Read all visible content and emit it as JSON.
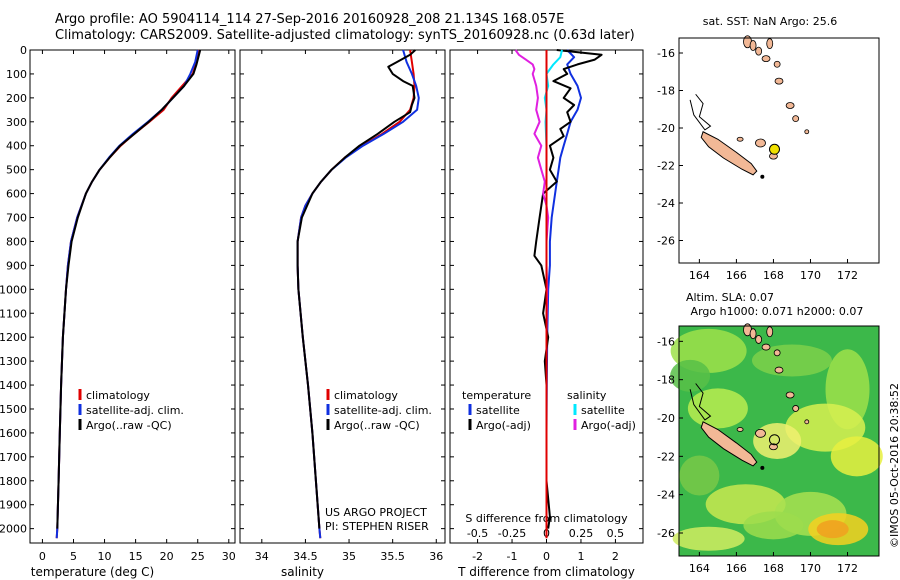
{
  "header": {
    "line1": "Argo profile: AO 5904114_114 27-Sep-2016 20160928_208 21.134S 168.057E",
    "line2": "Climatology: CARS2009. Satellite-adjusted climatology: synTS_20160928.nc (0.63d later)"
  },
  "colors": {
    "climatology": "#e00000",
    "satellite": "#1030e0",
    "argo": "#000000",
    "sat_salinity": "#00e8ff",
    "argo_salinity": "#e020e0",
    "land": "#f2b896",
    "marker": "#f0e000"
  },
  "chart_data": [
    {
      "type": "line",
      "name": "temperature",
      "xlabel": "temperature (deg C)",
      "ylabel": "",
      "xlim": [
        -2,
        31
      ],
      "ylim": [
        2060,
        0
      ],
      "xticks": [
        "0",
        "5",
        "10",
        "15",
        "20",
        "25",
        "30"
      ],
      "yticks": [
        "0",
        "100",
        "200",
        "300",
        "400",
        "500",
        "600",
        "700",
        "800",
        "900",
        "1000",
        "1100",
        "1200",
        "1300",
        "1400",
        "1500",
        "1600",
        "1700",
        "1800",
        "1900",
        "2000"
      ],
      "legend": [
        "climatology",
        "satellite-adj. clim.",
        "Argo(..raw -QC)"
      ],
      "series": [
        {
          "name": "climatology",
          "color": "#e00000",
          "depth": [
            0,
            50,
            100,
            150,
            200,
            250,
            300,
            350,
            400,
            450,
            500,
            550,
            600,
            700,
            800,
            900,
            1000,
            1200,
            1400,
            1600,
            1800,
            2000,
            2040
          ],
          "values": [
            25.2,
            24.8,
            24.2,
            22.5,
            20.8,
            19.5,
            17.2,
            14.8,
            12.6,
            10.8,
            9.2,
            8.0,
            7.0,
            5.6,
            4.6,
            4.1,
            3.8,
            3.3,
            3.0,
            2.8,
            2.6,
            2.4,
            2.3
          ]
        },
        {
          "name": "satellite-adj. clim.",
          "color": "#1030e0",
          "depth": [
            0,
            50,
            100,
            150,
            200,
            250,
            300,
            350,
            400,
            450,
            500,
            550,
            600,
            700,
            800,
            900,
            1000,
            1200,
            1400,
            1600,
            1800,
            2000,
            2040
          ],
          "values": [
            25.0,
            24.6,
            23.8,
            22.8,
            21.0,
            19.2,
            17.0,
            14.6,
            12.4,
            10.7,
            9.2,
            8.0,
            7.0,
            5.6,
            4.6,
            4.1,
            3.8,
            3.3,
            3.0,
            2.8,
            2.6,
            2.4,
            2.3
          ]
        },
        {
          "name": "Argo(..raw -QC)",
          "color": "#000000",
          "depth": [
            0,
            20,
            60,
            100,
            150,
            200,
            250,
            300,
            350,
            400,
            450,
            500,
            550,
            600,
            700,
            800,
            900,
            1000,
            1200,
            1400,
            1600,
            1800,
            2000
          ],
          "values": [
            25.4,
            25.2,
            24.8,
            24.3,
            22.8,
            21.0,
            19.2,
            17.1,
            14.8,
            12.5,
            10.8,
            9.2,
            8.0,
            7.0,
            5.7,
            4.7,
            4.2,
            3.8,
            3.3,
            3.0,
            2.8,
            2.6,
            2.4
          ]
        }
      ]
    },
    {
      "type": "line",
      "name": "salinity",
      "xlabel": "salinity",
      "ylabel": "",
      "xlim": [
        33.75,
        36.1
      ],
      "ylim": [
        2060,
        0
      ],
      "xticks": [
        "34",
        "34.5",
        "35",
        "35.5",
        "36"
      ],
      "legend": [
        "climatology",
        "satellite-adj. clim.",
        "Argo(..raw -QC)"
      ],
      "annotation": [
        "US ARGO PROJECT",
        "PI: STEPHEN RISER"
      ],
      "series": [
        {
          "name": "climatology",
          "color": "#e00000",
          "depth": [
            0,
            50,
            100,
            150,
            200,
            250,
            300,
            350,
            400,
            450,
            500,
            550,
            600,
            650,
            700,
            800,
            900,
            1000,
            1200,
            1400,
            1600,
            1800,
            2000,
            2040
          ],
          "values": [
            35.7,
            35.72,
            35.74,
            35.75,
            35.74,
            35.7,
            35.58,
            35.38,
            35.15,
            34.95,
            34.8,
            34.68,
            34.58,
            34.5,
            34.45,
            34.41,
            34.41,
            34.42,
            34.47,
            34.53,
            34.58,
            34.62,
            34.66,
            34.67
          ]
        },
        {
          "name": "satellite-adj. clim.",
          "color": "#1030e0",
          "depth": [
            0,
            50,
            100,
            150,
            200,
            250,
            300,
            350,
            400,
            450,
            500,
            550,
            600,
            650,
            700,
            800,
            900,
            1000,
            1200,
            1400,
            1600,
            1800,
            2000,
            2040
          ],
          "values": [
            35.62,
            35.66,
            35.72,
            35.77,
            35.8,
            35.78,
            35.62,
            35.4,
            35.16,
            34.96,
            34.8,
            34.68,
            34.58,
            34.5,
            34.45,
            34.41,
            34.41,
            34.42,
            34.47,
            34.53,
            34.58,
            34.62,
            34.66,
            34.67
          ]
        },
        {
          "name": "Argo(..raw -QC)",
          "color": "#000000",
          "depth": [
            0,
            20,
            50,
            70,
            100,
            130,
            150,
            200,
            230,
            260,
            300,
            350,
            400,
            450,
            500,
            550,
            600,
            700,
            800,
            900,
            1000,
            1200,
            1400,
            1600,
            1800,
            2000
          ],
          "values": [
            35.76,
            35.7,
            35.55,
            35.45,
            35.5,
            35.62,
            35.73,
            35.75,
            35.72,
            35.7,
            35.52,
            35.33,
            35.12,
            34.95,
            34.8,
            34.68,
            34.58,
            34.46,
            34.41,
            34.41,
            34.42,
            34.47,
            34.53,
            34.58,
            34.62,
            34.66
          ]
        }
      ]
    },
    {
      "type": "line",
      "name": "difference",
      "xlabel": "T difference from climatology",
      "top_label": "S difference from climatology",
      "xlim": [
        -2.8,
        2.8
      ],
      "ylim": [
        2060,
        0
      ],
      "xticks": [
        "-2",
        "-1",
        "0",
        "1",
        "2"
      ],
      "sticks": [
        "-0.5",
        "-0.25",
        "0",
        "0.25",
        "0.5"
      ],
      "legend_t": [
        "temperature",
        "satellite",
        "Argo(-adj)"
      ],
      "legend_s": [
        "salinity",
        "satellite",
        "Argo(-adj)"
      ],
      "series": [
        {
          "name": "temperature satellite",
          "color": "#1030e0",
          "depth": [
            0,
            30,
            60,
            100,
            150,
            200,
            250,
            300,
            350,
            400,
            450,
            500,
            550,
            600,
            700,
            800,
            900,
            1000,
            1200,
            1400,
            1600,
            1800,
            2000
          ],
          "values": [
            0.6,
            0.8,
            0.6,
            0.7,
            0.9,
            1.0,
            0.9,
            0.7,
            0.6,
            0.5,
            0.4,
            0.35,
            0.3,
            0.25,
            0.15,
            0.1,
            0.1,
            0.05,
            0.02,
            0.01,
            0.0,
            0.0,
            0.0
          ]
        },
        {
          "name": "temperature Argo(-adj)",
          "color": "#000000",
          "depth": [
            0,
            20,
            40,
            60,
            80,
            100,
            130,
            160,
            200,
            230,
            260,
            300,
            330,
            360,
            400,
            450,
            500,
            550,
            600,
            700,
            800,
            860,
            900,
            1000,
            1100,
            1200,
            1300,
            1400,
            1600,
            1800,
            1950,
            2000
          ],
          "values": [
            0.3,
            1.6,
            1.4,
            0.9,
            0.5,
            0.6,
            0.2,
            0.7,
            0.5,
            0.8,
            0.6,
            0.7,
            0.4,
            0.5,
            0.1,
            0.2,
            0.1,
            0.3,
            -0.1,
            -0.2,
            -0.3,
            -0.35,
            -0.15,
            0.0,
            -0.1,
            0.05,
            -0.05,
            0.0,
            0.0,
            0.0,
            0.1,
            0.05
          ]
        },
        {
          "name": "salinity satellite",
          "color": "#00e8ff",
          "depth": [
            0,
            30,
            60,
            100,
            150,
            200,
            250,
            300,
            400,
            500,
            600,
            800,
            1000,
            1200,
            1400,
            1600,
            1800,
            2000
          ],
          "values": [
            0.45,
            0.4,
            0.2,
            0.0,
            0.05,
            -0.05,
            0.0,
            -0.03,
            0.0,
            0.0,
            0.0,
            0.0,
            0.0,
            0.0,
            0.0,
            0.0,
            0.0,
            0.0
          ]
        },
        {
          "name": "salinity Argo(-adj)",
          "color": "#e020e0",
          "depth": [
            0,
            20,
            40,
            60,
            80,
            100,
            150,
            200,
            250,
            300,
            350,
            400,
            450,
            500,
            550,
            600,
            650,
            700,
            800,
            900,
            1000,
            1200,
            1400,
            1600,
            1800,
            2000
          ],
          "values": [
            -0.9,
            -0.8,
            -0.6,
            -0.4,
            -0.35,
            -0.4,
            -0.3,
            -0.25,
            -0.3,
            -0.2,
            -0.35,
            -0.15,
            -0.25,
            -0.15,
            -0.05,
            -0.1,
            0.0,
            0.05,
            0.0,
            0.0,
            0.02,
            0.0,
            0.0,
            0.0,
            0.0,
            0.0
          ]
        },
        {
          "name": "climatology",
          "color": "#e00000",
          "depth": [
            0,
            2040
          ],
          "values": [
            0,
            0
          ]
        }
      ]
    }
  ],
  "map_top": {
    "title": "sat. SST: NaN Argo: 25.6",
    "xticks": [
      "164",
      "166",
      "168",
      "170",
      "172"
    ],
    "yticks": [
      "-16",
      "-18",
      "-20",
      "-22",
      "-24",
      "-26"
    ]
  },
  "map_bottom": {
    "title_line1": "Altim. SLA: 0.07",
    "title_line2": "Argo h1000: 0.071 h2000: 0.07",
    "xticks": [
      "164",
      "166",
      "168",
      "170",
      "172"
    ],
    "yticks": [
      "-16",
      "-18",
      "-20",
      "-22",
      "-24",
      "-26"
    ]
  },
  "sidebar": {
    "stamp": "©IMOS 05-Oct-2016 20:38:52"
  }
}
